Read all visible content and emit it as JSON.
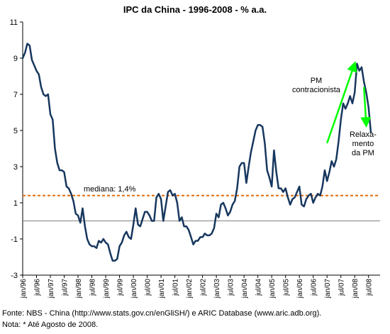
{
  "chart_data": {
    "type": "line",
    "title": "IPC da China - 1996-2008 - % a.a.",
    "xlabel": "",
    "ylabel": "",
    "ylim": [
      -3,
      11
    ],
    "yticks": [
      -3,
      -1,
      1,
      3,
      5,
      7,
      9,
      11
    ],
    "x_tick_labels": [
      "jan/96",
      "jul/96",
      "jan/97",
      "jul/97",
      "jan/98",
      "jul/98",
      "jan/99",
      "jul/99",
      "jan/00",
      "jul/00",
      "jan/01",
      "jul/01",
      "jan/02",
      "jul/02",
      "jan/03",
      "jul/03",
      "jan/04",
      "jul/04",
      "jan/05",
      "jul/05",
      "jan/06",
      "jul/06",
      "jan/07",
      "jul/07",
      "jan/08",
      "jul/08"
    ],
    "grid": false,
    "legend": "none",
    "line_color": "#17375e",
    "median": {
      "value": 1.4,
      "label": "mediana: 1,4%",
      "color": "#e46c0a"
    },
    "zero_line_color": "#808080",
    "series": [
      {
        "x": [
          "jan/96",
          "feb/96",
          "mar/96",
          "apr/96",
          "may/96",
          "jun/96",
          "jul/96",
          "aug/96",
          "sep/96",
          "oct/96",
          "nov/96",
          "dec/96",
          "jan/97",
          "feb/97",
          "mar/97",
          "apr/97",
          "may/97",
          "jun/97",
          "jul/97",
          "aug/97",
          "sep/97",
          "oct/97",
          "nov/97",
          "dec/97",
          "jan/98",
          "feb/98",
          "mar/98",
          "apr/98",
          "may/98",
          "jun/98",
          "jul/98",
          "aug/98",
          "sep/98",
          "oct/98",
          "nov/98",
          "dec/98",
          "jan/99",
          "feb/99",
          "mar/99",
          "apr/99",
          "may/99",
          "jun/99",
          "jul/99",
          "aug/99",
          "sep/99",
          "oct/99",
          "nov/99",
          "dec/99",
          "jan/00",
          "feb/00",
          "mar/00",
          "apr/00",
          "may/00",
          "jun/00",
          "jul/00",
          "aug/00",
          "sep/00",
          "oct/00",
          "nov/00",
          "dec/00",
          "jan/01",
          "feb/01",
          "mar/01",
          "apr/01",
          "may/01",
          "jun/01",
          "jul/01",
          "aug/01",
          "sep/01",
          "oct/01",
          "nov/01",
          "dec/01",
          "jan/02",
          "feb/02",
          "mar/02",
          "apr/02",
          "may/02",
          "jun/02",
          "jul/02",
          "aug/02",
          "sep/02",
          "oct/02",
          "nov/02",
          "dec/02",
          "jan/03",
          "feb/03",
          "mar/03",
          "apr/03",
          "may/03",
          "jun/03",
          "jul/03",
          "aug/03",
          "sep/03",
          "oct/03",
          "nov/03",
          "dec/03",
          "jan/04",
          "feb/04",
          "mar/04",
          "apr/04",
          "may/04",
          "jun/04",
          "jul/04",
          "aug/04",
          "sep/04",
          "oct/04",
          "nov/04",
          "dec/04",
          "jan/05",
          "feb/05",
          "mar/05",
          "apr/05",
          "may/05",
          "jun/05",
          "jul/05",
          "aug/05",
          "sep/05",
          "oct/05",
          "nov/05",
          "dec/05",
          "jan/06",
          "feb/06",
          "mar/06",
          "apr/06",
          "may/06",
          "jun/06",
          "jul/06",
          "aug/06",
          "sep/06",
          "oct/06",
          "nov/06",
          "dec/06",
          "jan/07",
          "feb/07",
          "mar/07",
          "apr/07",
          "may/07",
          "jun/07",
          "jul/07",
          "aug/07",
          "sep/07",
          "oct/07",
          "nov/07",
          "dec/07",
          "jan/08",
          "feb/08",
          "mar/08",
          "apr/08",
          "may/08",
          "jun/08",
          "jul/08",
          "aug/08"
        ],
        "values": [
          9.0,
          9.3,
          9.8,
          9.7,
          8.9,
          8.6,
          8.3,
          8.1,
          7.4,
          7.0,
          6.9,
          7.0,
          5.9,
          5.6,
          4.0,
          3.2,
          2.8,
          2.8,
          2.7,
          1.9,
          1.8,
          1.5,
          1.1,
          0.4,
          0.3,
          -0.1,
          0.7,
          -0.3,
          -1.0,
          -1.3,
          -1.4,
          -1.4,
          -1.5,
          -1.1,
          -1.2,
          -1.0,
          -1.2,
          -1.3,
          -1.8,
          -2.2,
          -2.2,
          -2.1,
          -1.4,
          -1.2,
          -0.8,
          -0.6,
          -0.9,
          -1.0,
          -0.2,
          0.7,
          -0.2,
          -0.3,
          0.1,
          0.5,
          0.5,
          0.3,
          0.0,
          0.0,
          1.3,
          1.5,
          1.2,
          0.0,
          0.8,
          1.6,
          1.7,
          1.4,
          1.5,
          1.0,
          0.0,
          0.2,
          -0.3,
          -0.3,
          -0.5,
          -0.9,
          -1.3,
          -1.1,
          -1.1,
          -0.9,
          -0.9,
          -0.7,
          -0.8,
          -0.8,
          -0.7,
          -0.4,
          0.4,
          0.2,
          0.9,
          1.0,
          0.7,
          0.3,
          0.5,
          0.9,
          1.1,
          1.8,
          3.0,
          3.2,
          3.2,
          2.1,
          3.0,
          3.8,
          4.4,
          5.0,
          5.3,
          5.3,
          5.2,
          4.3,
          2.8,
          2.4,
          1.9,
          3.9,
          2.7,
          1.8,
          1.8,
          1.6,
          1.8,
          1.3,
          0.9,
          1.2,
          1.3,
          1.6,
          1.9,
          0.9,
          0.8,
          1.2,
          1.4,
          1.5,
          1.0,
          1.3,
          1.5,
          1.4,
          1.9,
          2.8,
          2.2,
          2.7,
          3.3,
          3.0,
          3.4,
          4.4,
          5.6,
          6.5,
          6.2,
          6.5,
          6.9,
          6.5,
          7.1,
          8.7,
          8.3,
          8.5,
          7.7,
          7.1,
          6.3,
          4.9
        ]
      }
    ],
    "annotations": [
      {
        "lines": [
          "PM",
          "contracionista"
        ],
        "arrow": {
          "from": [
            "jan/07",
            4.3
          ],
          "to": [
            "jan/08",
            8.7
          ]
        },
        "color": "#00ff00"
      },
      {
        "lines": [
          "Relaxa-",
          "mento",
          "da PM"
        ],
        "arrow": {
          "from": [
            "may/08",
            7.4
          ],
          "to": [
            "jun/08",
            5.3
          ]
        },
        "color": "#00ff00"
      }
    ]
  },
  "footer": {
    "source": "Fonte: NBS - China (http://www.stats.gov.cn/enGliSH/) e ARIC Database (www.aric.adb.org).",
    "note": "Nota: * Até Agosto de 2008."
  }
}
